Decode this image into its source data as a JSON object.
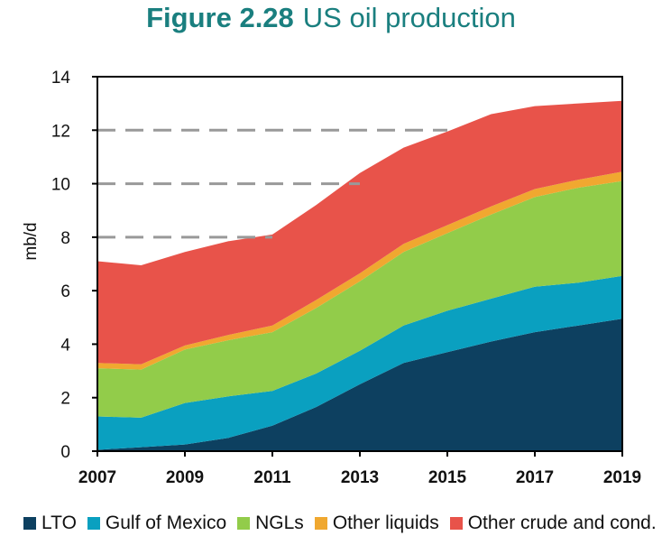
{
  "figure": {
    "number": "Figure 2.28",
    "title": "US oil production"
  },
  "chart_data": {
    "type": "area",
    "stacked": true,
    "title": "US oil production",
    "ylabel": "mb/d",
    "xlabel": "",
    "x": [
      2007,
      2008,
      2009,
      2010,
      2011,
      2012,
      2013,
      2014,
      2015,
      2016,
      2017,
      2018,
      2019
    ],
    "x_tick_labels": [
      "2007",
      "2009",
      "2011",
      "2013",
      "2015",
      "2017",
      "2019"
    ],
    "x_tick_values": [
      2007,
      2009,
      2011,
      2013,
      2015,
      2017,
      2019
    ],
    "y_tick_labels": [
      "0",
      "2",
      "4",
      "6",
      "8",
      "10",
      "12",
      "14"
    ],
    "y_tick_values": [
      0,
      2,
      4,
      6,
      8,
      10,
      12,
      14
    ],
    "ylim": [
      0,
      14
    ],
    "xlim": [
      2007,
      2019
    ],
    "series": [
      {
        "name": "LTO",
        "color": "#0d4060",
        "values": [
          0.05,
          0.15,
          0.25,
          0.5,
          0.95,
          1.65,
          2.5,
          3.3,
          3.7,
          4.1,
          4.45,
          4.7,
          4.95
        ]
      },
      {
        "name": "Gulf of Mexico",
        "color": "#0aa0c0",
        "values": [
          1.25,
          1.1,
          1.55,
          1.55,
          1.3,
          1.25,
          1.25,
          1.4,
          1.55,
          1.6,
          1.7,
          1.6,
          1.6
        ]
      },
      {
        "name": "NGLs",
        "color": "#92cc4a",
        "values": [
          1.8,
          1.8,
          2.0,
          2.1,
          2.2,
          2.45,
          2.6,
          2.75,
          2.9,
          3.15,
          3.35,
          3.55,
          3.55
        ]
      },
      {
        "name": "Other liquids",
        "color": "#f0a830",
        "values": [
          0.2,
          0.2,
          0.15,
          0.2,
          0.25,
          0.3,
          0.3,
          0.3,
          0.3,
          0.3,
          0.3,
          0.3,
          0.35
        ]
      },
      {
        "name": "Other crude and cond.",
        "color": "#e8534a",
        "values": [
          3.8,
          3.7,
          3.5,
          3.5,
          3.4,
          3.55,
          3.75,
          3.6,
          3.5,
          3.45,
          3.1,
          2.85,
          2.65
        ]
      }
    ],
    "dashed_gridlines": [
      {
        "y": 8,
        "x_start": 2007,
        "x_end": 2011
      },
      {
        "y": 10,
        "x_start": 2007,
        "x_end": 2013
      },
      {
        "y": 12,
        "x_start": 2007,
        "x_end": 2015
      }
    ],
    "legend_position": "bottom"
  }
}
